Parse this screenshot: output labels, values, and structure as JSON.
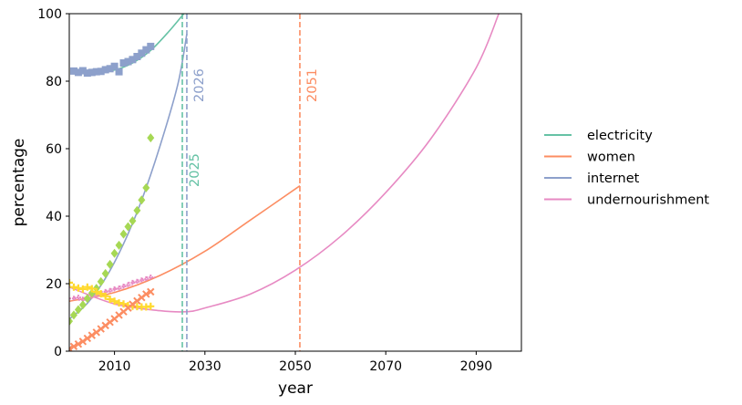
{
  "chart_data": {
    "type": "line",
    "xlabel": "year",
    "ylabel": "percentage",
    "xlim": [
      2000,
      2100
    ],
    "ylim": [
      0,
      100
    ],
    "x_ticks": [
      2010,
      2030,
      2050,
      2070,
      2090
    ],
    "y_ticks": [
      0,
      20,
      40,
      60,
      80,
      100
    ],
    "grid": false,
    "legend_position": "right",
    "series": [
      {
        "name": "electricity",
        "color": "#66c2a5",
        "fit": {
          "years": [
            2002,
            2006,
            2010,
            2014,
            2018,
            2022,
            2026
          ],
          "values": [
            82.5,
            82.5,
            83.3,
            85.4,
            89.1,
            94.7,
            101.1
          ]
        },
        "observed": {
          "marker": "square",
          "color": "#8da0cb",
          "years": [
            2001,
            2002,
            2003,
            2004,
            2005,
            2006,
            2007,
            2008,
            2009,
            2010,
            2011,
            2012,
            2013,
            2014,
            2015,
            2016,
            2017,
            2018
          ],
          "values": [
            83.0,
            82.6,
            83.1,
            82.4,
            82.6,
            82.8,
            82.9,
            83.4,
            83.7,
            84.4,
            82.8,
            85.4,
            85.8,
            86.4,
            87.3,
            88.3,
            89.3,
            90.3
          ]
        }
      },
      {
        "name": "women",
        "color": "#fc8d62",
        "fit": {
          "years": [
            2000,
            2010,
            2020,
            2030,
            2040,
            2051
          ],
          "values": [
            14.8,
            17.4,
            22.4,
            29.6,
            38.8,
            49.0
          ]
        },
        "observed": {
          "marker": "cross",
          "color": "#e78ac3",
          "years": [
            2001,
            2002,
            2003,
            2004,
            2005,
            2006,
            2007,
            2008,
            2009,
            2010,
            2011,
            2012,
            2013,
            2014,
            2015,
            2016,
            2017,
            2018
          ],
          "values": [
            15.6,
            15.9,
            15.2,
            15.8,
            16.1,
            16.7,
            17.0,
            17.6,
            17.9,
            18.4,
            18.6,
            19.2,
            19.6,
            20.3,
            20.6,
            21.0,
            21.4,
            21.9
          ]
        }
      },
      {
        "name": "internet",
        "color": "#8da0cb",
        "fit": {
          "years": [
            2000,
            2004,
            2008,
            2012,
            2016,
            2020,
            2024,
            2026
          ],
          "values": [
            9.5,
            14.2,
            21.6,
            31.8,
            44.7,
            60.5,
            79.0,
            94.0
          ]
        },
        "observed": {
          "marker": "diamond",
          "color": "#a6d854",
          "years": [
            2000,
            2001,
            2002,
            2003,
            2004,
            2005,
            2006,
            2007,
            2008,
            2009,
            2010,
            2011,
            2012,
            2013,
            2014,
            2015,
            2016,
            2017,
            2018
          ],
          "values": [
            8.9,
            10.7,
            12.3,
            13.7,
            15.6,
            17.2,
            18.6,
            20.6,
            23.0,
            25.7,
            29.0,
            31.4,
            34.7,
            36.9,
            38.6,
            41.7,
            44.8,
            48.4,
            63.2
          ]
        }
      },
      {
        "name": "undernourishment",
        "color": "#e78ac3",
        "fit": {
          "years": [
            2000,
            2010,
            2020,
            2026,
            2030,
            2040,
            2050,
            2060,
            2070,
            2080,
            2090,
            2095
          ],
          "values": [
            19.0,
            14.0,
            12.0,
            11.7,
            12.8,
            16.9,
            24.0,
            34.0,
            47.0,
            63.0,
            84.0,
            100.0
          ]
        },
        "observed": {
          "marker": "plus",
          "color": "#ffd92f",
          "years": [
            2000,
            2001,
            2002,
            2003,
            2004,
            2005,
            2006,
            2007,
            2008,
            2009,
            2010,
            2011,
            2012,
            2013,
            2014,
            2015,
            2016,
            2017,
            2018
          ],
          "values": [
            20.3,
            19.0,
            18.7,
            18.4,
            19.0,
            18.5,
            17.6,
            17.0,
            16.3,
            15.4,
            14.8,
            14.3,
            14.0,
            13.5,
            13.3,
            13.2,
            13.1,
            13.1,
            13.3
          ]
        }
      },
      {
        "name": "",
        "color": "#fc8d62",
        "observed": {
          "marker": "x",
          "color": "#fc8d62",
          "years": [
            2000,
            2001,
            2002,
            2003,
            2004,
            2005,
            2006,
            2007,
            2008,
            2009,
            2010,
            2011,
            2012,
            2013,
            2014,
            2015,
            2016,
            2017,
            2018
          ],
          "values": [
            0.7,
            1.4,
            2.1,
            2.9,
            3.8,
            4.7,
            5.6,
            6.6,
            7.6,
            8.6,
            9.6,
            10.7,
            11.7,
            12.8,
            13.9,
            14.9,
            15.9,
            16.9,
            17.6
          ]
        }
      }
    ],
    "vertical_lines": [
      {
        "x": 2025,
        "label": "2025",
        "color": "#66c2a5"
      },
      {
        "x": 2026,
        "label": "2026",
        "color": "#8da0cb"
      },
      {
        "x": 2051,
        "label": "2051",
        "color": "#fc8d62"
      }
    ]
  }
}
